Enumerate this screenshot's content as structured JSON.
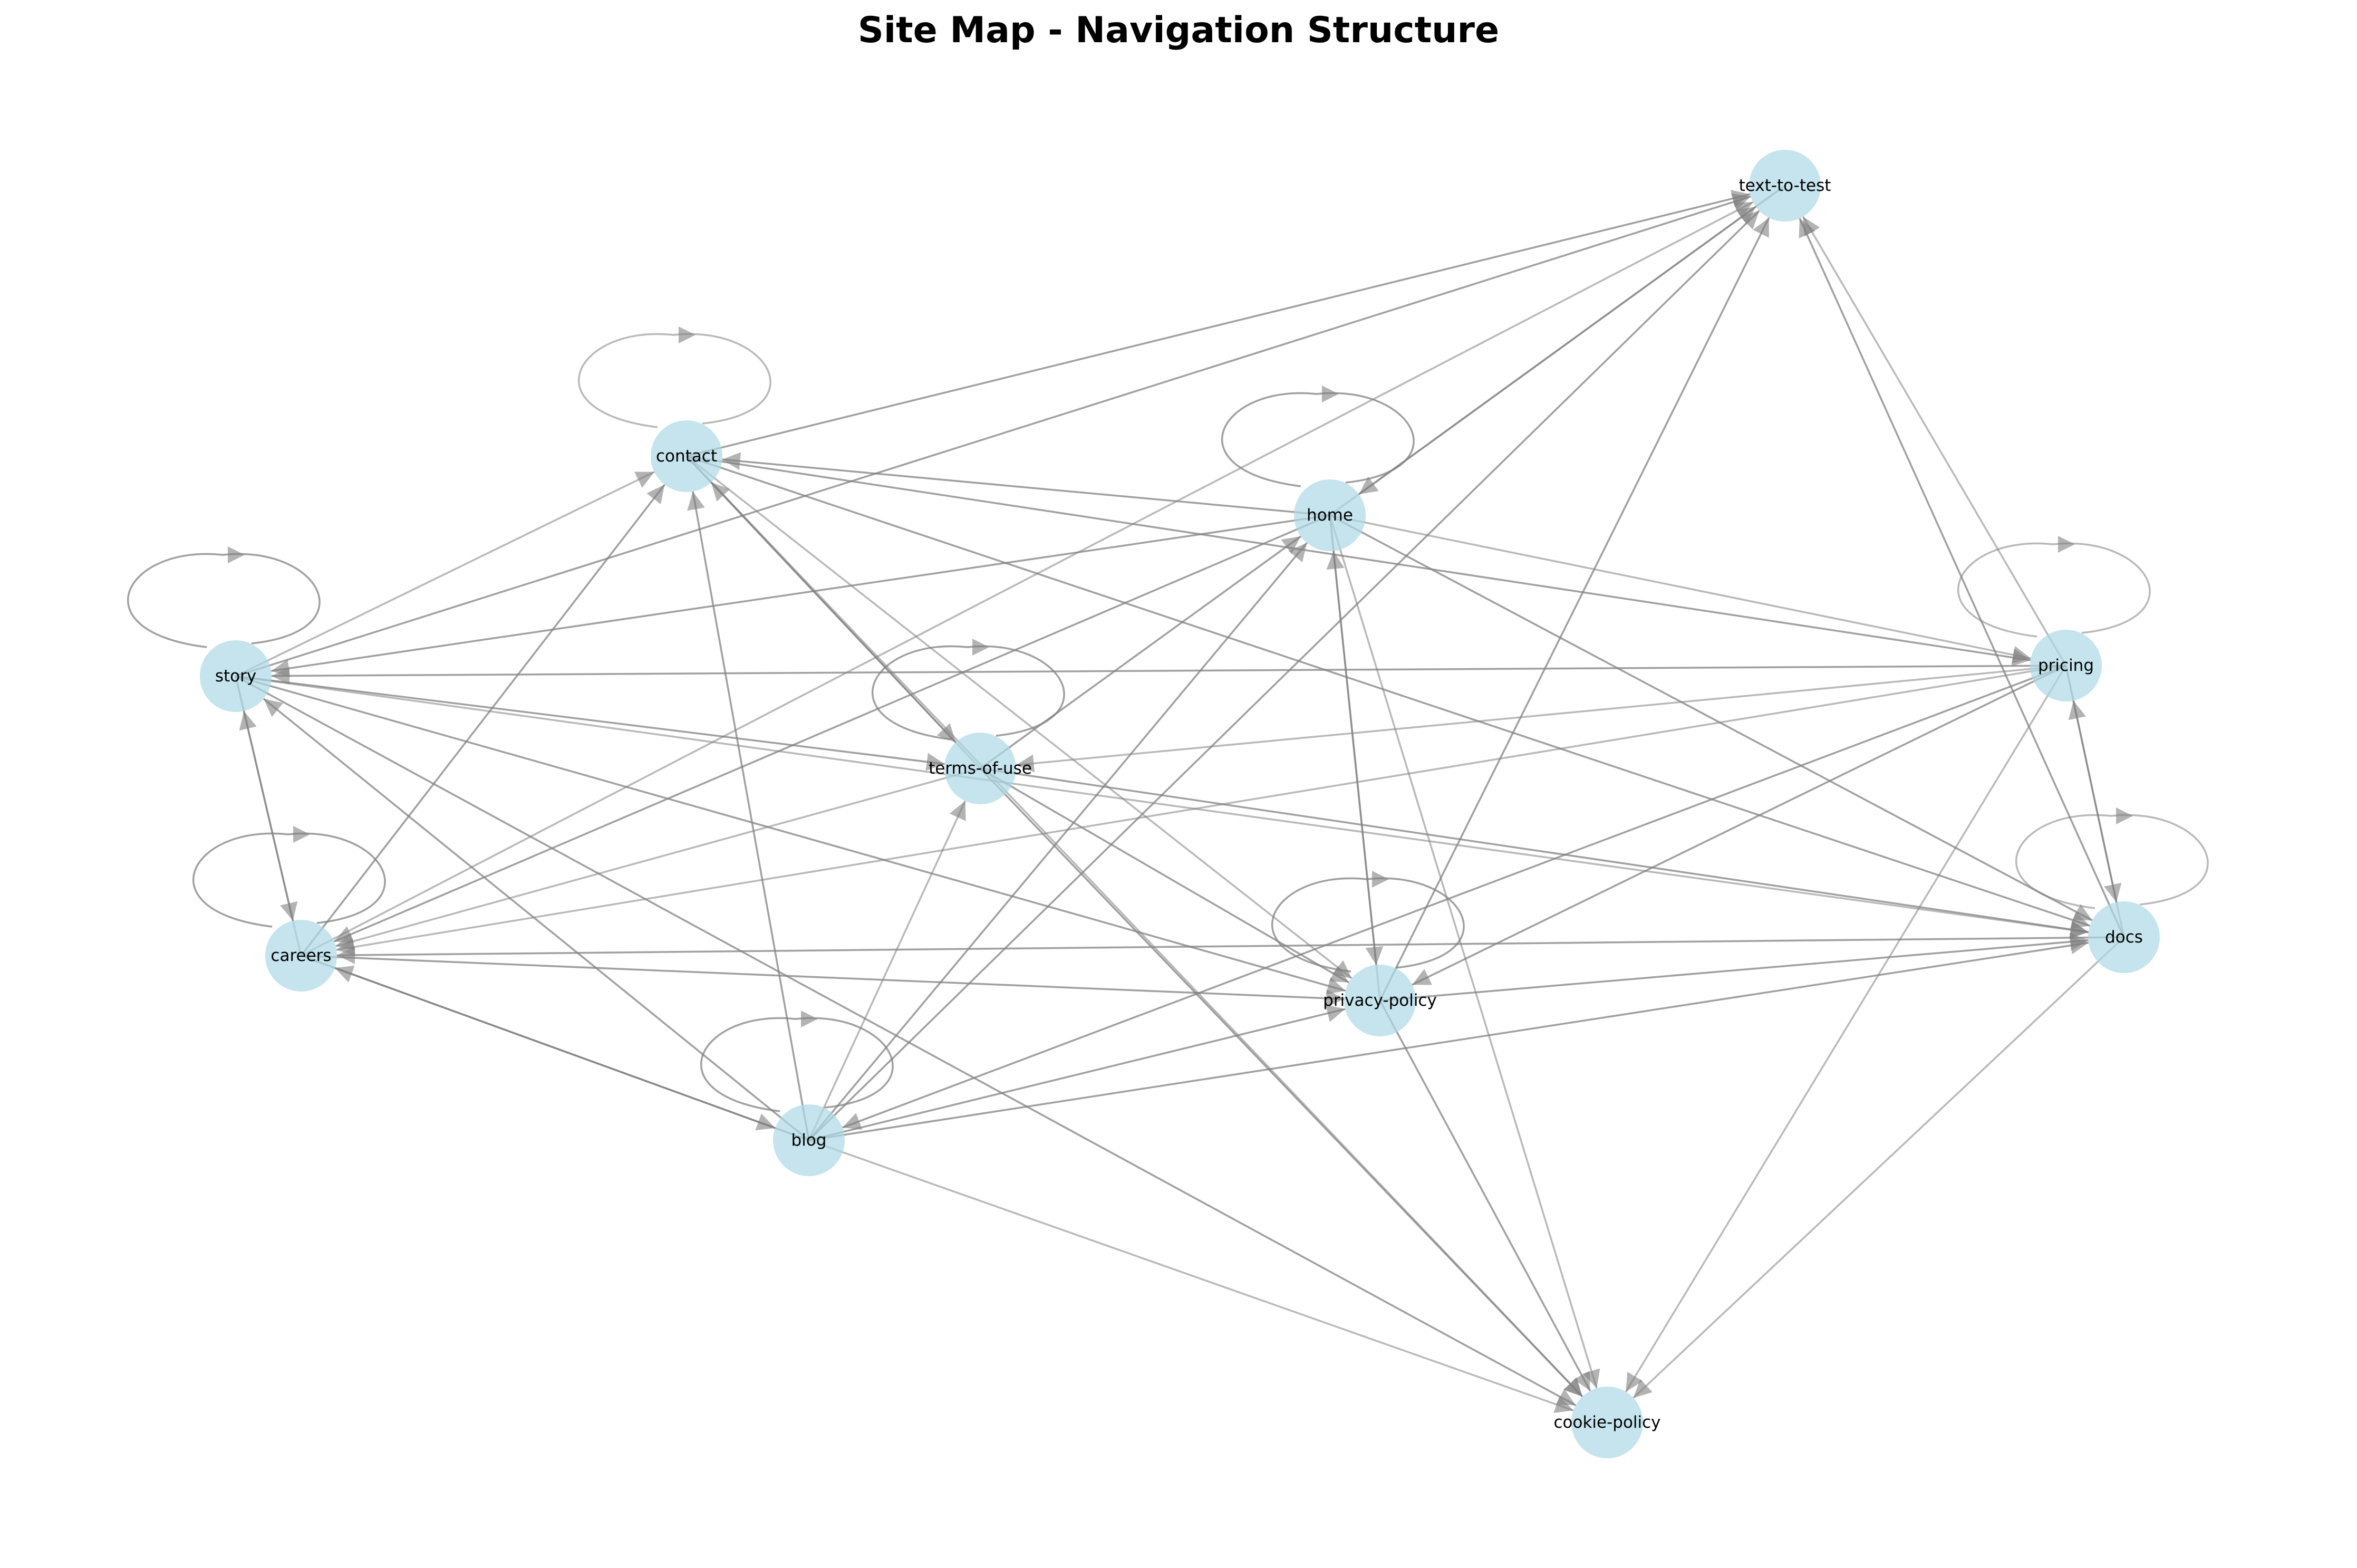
{
  "title": "Site Map - Navigation Structure",
  "colors": {
    "node_fill": "#add8e6",
    "edge": "#808080",
    "background": "#ffffff",
    "text": "#000000"
  },
  "nodes": [
    {
      "id": "text-to-test",
      "label": "text-to-test"
    },
    {
      "id": "contact",
      "label": "contact"
    },
    {
      "id": "home",
      "label": "home"
    },
    {
      "id": "story",
      "label": "story"
    },
    {
      "id": "pricing",
      "label": "pricing"
    },
    {
      "id": "terms-of-use",
      "label": "terms-of-use"
    },
    {
      "id": "careers",
      "label": "careers"
    },
    {
      "id": "docs",
      "label": "docs"
    },
    {
      "id": "privacy-policy",
      "label": "privacy-policy"
    },
    {
      "id": "blog",
      "label": "blog"
    },
    {
      "id": "cookie-policy",
      "label": "cookie-policy"
    }
  ],
  "edges": [
    {
      "from": "contact",
      "to": "contact"
    },
    {
      "from": "home",
      "to": "home"
    },
    {
      "from": "story",
      "to": "story"
    },
    {
      "from": "pricing",
      "to": "pricing"
    },
    {
      "from": "terms-of-use",
      "to": "terms-of-use"
    },
    {
      "from": "careers",
      "to": "careers"
    },
    {
      "from": "docs",
      "to": "docs"
    },
    {
      "from": "privacy-policy",
      "to": "privacy-policy"
    },
    {
      "from": "blog",
      "to": "blog"
    },
    {
      "from": "home",
      "to": "text-to-test"
    },
    {
      "from": "contact",
      "to": "text-to-test"
    },
    {
      "from": "story",
      "to": "text-to-test"
    },
    {
      "from": "careers",
      "to": "text-to-test"
    },
    {
      "from": "blog",
      "to": "text-to-test"
    },
    {
      "from": "privacy-policy",
      "to": "text-to-test"
    },
    {
      "from": "pricing",
      "to": "text-to-test"
    },
    {
      "from": "docs",
      "to": "text-to-test"
    },
    {
      "from": "text-to-test",
      "to": "home"
    },
    {
      "from": "story",
      "to": "contact"
    },
    {
      "from": "careers",
      "to": "contact"
    },
    {
      "from": "blog",
      "to": "contact"
    },
    {
      "from": "terms-of-use",
      "to": "contact"
    },
    {
      "from": "home",
      "to": "contact"
    },
    {
      "from": "contact",
      "to": "terms-of-use"
    },
    {
      "from": "contact",
      "to": "privacy-policy"
    },
    {
      "from": "contact",
      "to": "pricing"
    },
    {
      "from": "contact",
      "to": "docs"
    },
    {
      "from": "contact",
      "to": "cookie-policy"
    },
    {
      "from": "home",
      "to": "story"
    },
    {
      "from": "home",
      "to": "careers"
    },
    {
      "from": "home",
      "to": "pricing"
    },
    {
      "from": "home",
      "to": "privacy-policy"
    },
    {
      "from": "home",
      "to": "docs"
    },
    {
      "from": "home",
      "to": "cookie-policy"
    },
    {
      "from": "blog",
      "to": "home"
    },
    {
      "from": "terms-of-use",
      "to": "home"
    },
    {
      "from": "privacy-policy",
      "to": "home"
    },
    {
      "from": "pricing",
      "to": "story"
    },
    {
      "from": "story",
      "to": "terms-of-use"
    },
    {
      "from": "story",
      "to": "docs"
    },
    {
      "from": "story",
      "to": "privacy-policy"
    },
    {
      "from": "story",
      "to": "careers"
    },
    {
      "from": "careers",
      "to": "story"
    },
    {
      "from": "blog",
      "to": "story"
    },
    {
      "from": "story",
      "to": "cookie-policy"
    },
    {
      "from": "pricing",
      "to": "careers"
    },
    {
      "from": "docs",
      "to": "careers"
    },
    {
      "from": "careers",
      "to": "privacy-policy"
    },
    {
      "from": "terms-of-use",
      "to": "careers"
    },
    {
      "from": "careers",
      "to": "blog"
    },
    {
      "from": "blog",
      "to": "careers"
    },
    {
      "from": "pricing",
      "to": "terms-of-use"
    },
    {
      "from": "terms-of-use",
      "to": "docs"
    },
    {
      "from": "terms-of-use",
      "to": "privacy-policy"
    },
    {
      "from": "blog",
      "to": "terms-of-use"
    },
    {
      "from": "terms-of-use",
      "to": "cookie-policy"
    },
    {
      "from": "pricing",
      "to": "docs"
    },
    {
      "from": "docs",
      "to": "pricing"
    },
    {
      "from": "pricing",
      "to": "blog"
    },
    {
      "from": "pricing",
      "to": "privacy-policy"
    },
    {
      "from": "pricing",
      "to": "cookie-policy"
    },
    {
      "from": "blog",
      "to": "docs"
    },
    {
      "from": "privacy-policy",
      "to": "docs"
    },
    {
      "from": "docs",
      "to": "cookie-policy"
    },
    {
      "from": "blog",
      "to": "privacy-policy"
    },
    {
      "from": "privacy-policy",
      "to": "cookie-policy"
    },
    {
      "from": "blog",
      "to": "cookie-policy"
    }
  ]
}
